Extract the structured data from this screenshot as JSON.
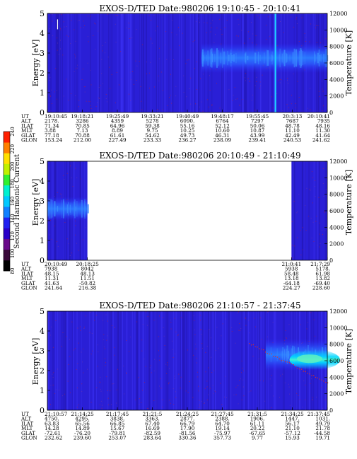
{
  "colorbar": {
    "label": "Second Harmonic Current",
    "ticks": [
      "80",
      "100",
      "120",
      "140",
      "160",
      "180",
      "200",
      "220",
      "240"
    ],
    "colors": [
      "#000000",
      "#3a0a3a",
      "#6a0a8a",
      "#2a00c8",
      "#2020f0",
      "#1080ff",
      "#00c8ff",
      "#00f0d0",
      "#30f030",
      "#c0f000",
      "#ffe000",
      "#ff8000",
      "#ff2000"
    ]
  },
  "chart_data": [
    {
      "type": "heatmap",
      "title": "EXOS-D/TED   Date:980206  19:10:45 - 20:10:41",
      "ylabel": "Energy [eV]",
      "y2label": "Temperature [K]",
      "ylim": [
        0,
        5
      ],
      "y2lim": [
        0,
        12000
      ],
      "yticks": [
        "0",
        "1",
        "2",
        "3",
        "4",
        "5"
      ],
      "y2ticks": [
        "0",
        "2000",
        "4000",
        "6000",
        "8000",
        "10000",
        "12000"
      ],
      "coverage": [
        [
          0,
          1
        ]
      ],
      "intense_band": {
        "x_from": 0.55,
        "x_to": 1.0,
        "e_from": 2.0,
        "e_to": 3.5
      },
      "spike": {
        "x": 0.812
      },
      "orbit_table": {
        "rows": [
          {
            "label": "UT",
            "values": [
              "19:10:45",
              "19:18:21",
              "19:25:49",
              "19:33:21",
              "19:40:49",
              "19:48:17",
              "19:55:45",
              "20:3:13",
              "20:10:41"
            ]
          },
          {
            "label": "ALT",
            "values": [
              "2178.",
              "3286",
              "4359",
              "5278",
              "6090.",
              "6764",
              "7297",
              "7687",
              "7935"
            ]
          },
          {
            "label": "ILAT",
            "values": [
              "71.34",
              "70.85",
              "64.96",
              "59.38",
              "55.16",
              "52.12",
              "50.06",
              "48.78",
              "48.16"
            ]
          },
          {
            "label": "MLT",
            "values": [
              "3.88",
              "7.13",
              "8.89",
              "9.75",
              "10.25",
              "10.60",
              "10.87",
              "11.10",
              "11.30"
            ]
          },
          {
            "label": "GLAT",
            "values": [
              "77.18",
              "70.88",
              "61.61",
              "54.62",
              "49.73",
              "46.31",
              "43.99",
              "42.49",
              "41.64"
            ]
          },
          {
            "label": "GLON",
            "values": [
              "153.24",
              "212.00",
              "227.49",
              "233.33",
              "236.27",
              "238.09",
              "239.41",
              "240.53",
              "241.62"
            ]
          }
        ]
      }
    },
    {
      "type": "heatmap",
      "title": "EXOS-D/TED   Date:980206  20:10:49 - 21:10:49",
      "ylabel": "Energy [eV]",
      "y2label": "Temperature [K]",
      "ylim": [
        0,
        5
      ],
      "y2lim": [
        0,
        12000
      ],
      "yticks": [
        "0",
        "1",
        "2",
        "3",
        "4",
        "5"
      ],
      "y2ticks": [
        "0",
        "2000",
        "4000",
        "6000",
        "8000",
        "10000",
        "12000"
      ],
      "coverage": [
        [
          0,
          0.143
        ],
        [
          0.872,
          1
        ]
      ],
      "intense_band": {
        "x_from": 0.0,
        "x_to": 0.143,
        "e_from": 2.0,
        "e_to": 3.2
      },
      "orbit_table": {
        "rows": [
          {
            "label": "UT",
            "values": [
              "20:10:49",
              "20:18:25",
              "21:0:41",
              "21:7:29"
            ]
          },
          {
            "label": "ALT",
            "values": [
              "7938",
              "8042",
              "5938",
              "5178."
            ]
          },
          {
            "label": "ILAT",
            "values": [
              "48.15",
              "48.13",
              "58.48",
              "61.98"
            ]
          },
          {
            "label": "MLT",
            "values": [
              "11.31",
              "11.51",
              "13.18",
              "13.82"
            ]
          },
          {
            "label": "GLAT",
            "values": [
              "41.63",
              "-50.82",
              "-64.18",
              "-69.40"
            ]
          },
          {
            "label": "GLON",
            "values": [
              "241.64",
              "216.38",
              "224.27",
              "228.60"
            ]
          }
        ]
      }
    },
    {
      "type": "heatmap",
      "title": "EXOS-D/TED   Date:980206  21:10:57 - 21:37:45",
      "ylabel": "Energy [eV]",
      "y2label": "Temperature [K]",
      "ylim": [
        0,
        5
      ],
      "y2lim": [
        0,
        12000
      ],
      "yticks": [
        "0",
        "1",
        "2",
        "3",
        "4",
        "5"
      ],
      "y2ticks": [
        "0",
        "2000",
        "4000",
        "6000",
        "8000",
        "10000",
        "12000"
      ],
      "coverage": [
        [
          0,
          1
        ]
      ],
      "intense_band": {
        "x_from": 0.78,
        "x_to": 1.0,
        "e_from": 2.0,
        "e_to": 3.6
      },
      "orbit_table": {
        "rows": [
          {
            "label": "UT",
            "values": [
              "21:10:57",
              "21:14:25",
              "21:17:45",
              "21:21:5",
              "21:24:25",
              "21:27:45",
              "21:31:5",
              "21:34:25",
              "21:37:45"
            ]
          },
          {
            "label": "ALT",
            "values": [
              "4750.",
              "4295.",
              "3838.",
              "3363.",
              "2877.",
              "2388.",
              "1906.",
              "1447.",
              "1031."
            ]
          },
          {
            "label": "ILAT",
            "values": [
              "63.83",
              "65.56",
              "66.85",
              "67.40",
              "66.79",
              "64.70",
              "61.11",
              "56.17",
              "49.79"
            ]
          },
          {
            "label": "MLT",
            "values": [
              "14.28",
              "14.89",
              "15.67",
              "16.69",
              "17.90",
              "19.14",
              "20.22",
              "21.10",
              "21.78"
            ]
          },
          {
            "label": "GLAT",
            "values": [
              "-72.61",
              "-76.20",
              "-79.81",
              "-82.59",
              "-81.56",
              "-75.97",
              "-67.65",
              "-57.12",
              "-44.58"
            ]
          },
          {
            "label": "GLON",
            "values": [
              "232.62",
              "239.60",
              "253.07",
              "283.64",
              "330.36",
              "357.73",
              "9.77",
              "15.93",
              "19.71"
            ]
          }
        ]
      }
    }
  ]
}
